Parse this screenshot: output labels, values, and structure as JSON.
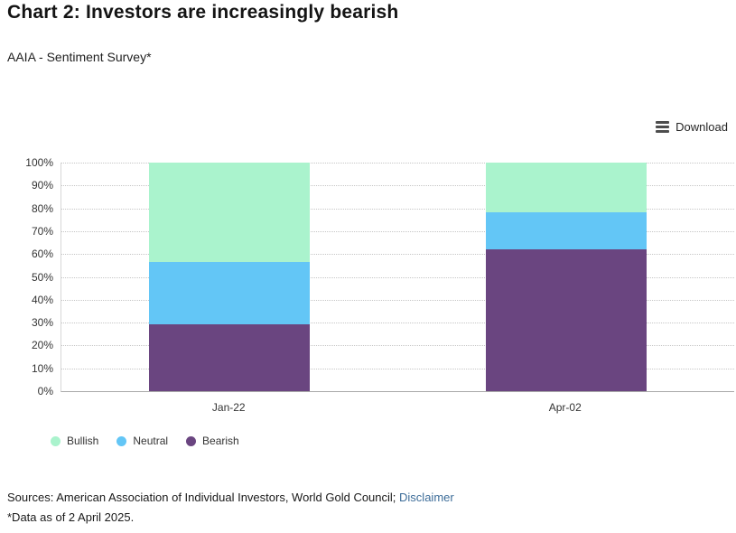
{
  "page": {
    "title": "Chart 2: Investors are increasingly bearish",
    "subtitle": "AAIA - Sentiment Survey*"
  },
  "toolbar": {
    "download_label": "Download"
  },
  "chart_data": {
    "type": "bar",
    "stacked": true,
    "categories": [
      "Jan-22",
      "Apr-02"
    ],
    "series": [
      {
        "name": "Bullish",
        "color": "#aaf3cd",
        "values": [
          43.4,
          21.8
        ]
      },
      {
        "name": "Neutral",
        "color": "#63c6f6",
        "values": [
          27.1,
          16.3
        ]
      },
      {
        "name": "Bearish",
        "color": "#6a4580",
        "values": [
          29.4,
          61.9
        ]
      }
    ],
    "stack_order_bottom_to_top": [
      "Bearish",
      "Neutral",
      "Bullish"
    ],
    "xlabel": "",
    "ylabel": "",
    "ylim": [
      0,
      100
    ],
    "y_ticks": [
      "100%",
      "90%",
      "80%",
      "70%",
      "60%",
      "50%",
      "40%",
      "30%",
      "20%",
      "10%",
      "0%"
    ],
    "grid": "horizontal-dotted",
    "legend_position": "bottom-left"
  },
  "footer": {
    "sources_prefix": "Sources: American Association of Individual Investors, World Gold Council; ",
    "disclaimer_link": "Disclaimer",
    "data_note": "*Data as of 2 April 2025."
  }
}
